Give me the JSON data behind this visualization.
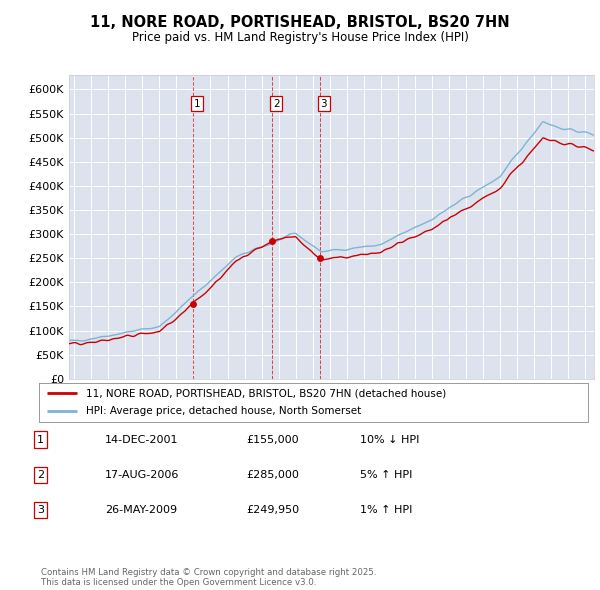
{
  "title": "11, NORE ROAD, PORTISHEAD, BRISTOL, BS20 7HN",
  "subtitle": "Price paid vs. HM Land Registry's House Price Index (HPI)",
  "ylabel_ticks": [
    "£0",
    "£50K",
    "£100K",
    "£150K",
    "£200K",
    "£250K",
    "£300K",
    "£350K",
    "£400K",
    "£450K",
    "£500K",
    "£550K",
    "£600K"
  ],
  "ylim": [
    0,
    630000
  ],
  "ytick_values": [
    0,
    50000,
    100000,
    150000,
    200000,
    250000,
    300000,
    350000,
    400000,
    450000,
    500000,
    550000,
    600000
  ],
  "plot_bg_color": "#dde3ee",
  "grid_color": "#ffffff",
  "hpi_color": "#7fb3d3",
  "price_color": "#cc0000",
  "transaction_dates": [
    2001.95,
    2006.62,
    2009.4
  ],
  "transaction_prices": [
    155000,
    285000,
    249950
  ],
  "transaction_labels": [
    "1",
    "2",
    "3"
  ],
  "legend_line1": "11, NORE ROAD, PORTISHEAD, BRISTOL, BS20 7HN (detached house)",
  "legend_line2": "HPI: Average price, detached house, North Somerset",
  "table_rows": [
    [
      "1",
      "14-DEC-2001",
      "£155,000",
      "10% ↓ HPI"
    ],
    [
      "2",
      "17-AUG-2006",
      "£285,000",
      "5% ↑ HPI"
    ],
    [
      "3",
      "26-MAY-2009",
      "£249,950",
      "1% ↑ HPI"
    ]
  ],
  "footer": "Contains HM Land Registry data © Crown copyright and database right 2025.\nThis data is licensed under the Open Government Licence v3.0.",
  "xmin": 1994.7,
  "xmax": 2025.5
}
